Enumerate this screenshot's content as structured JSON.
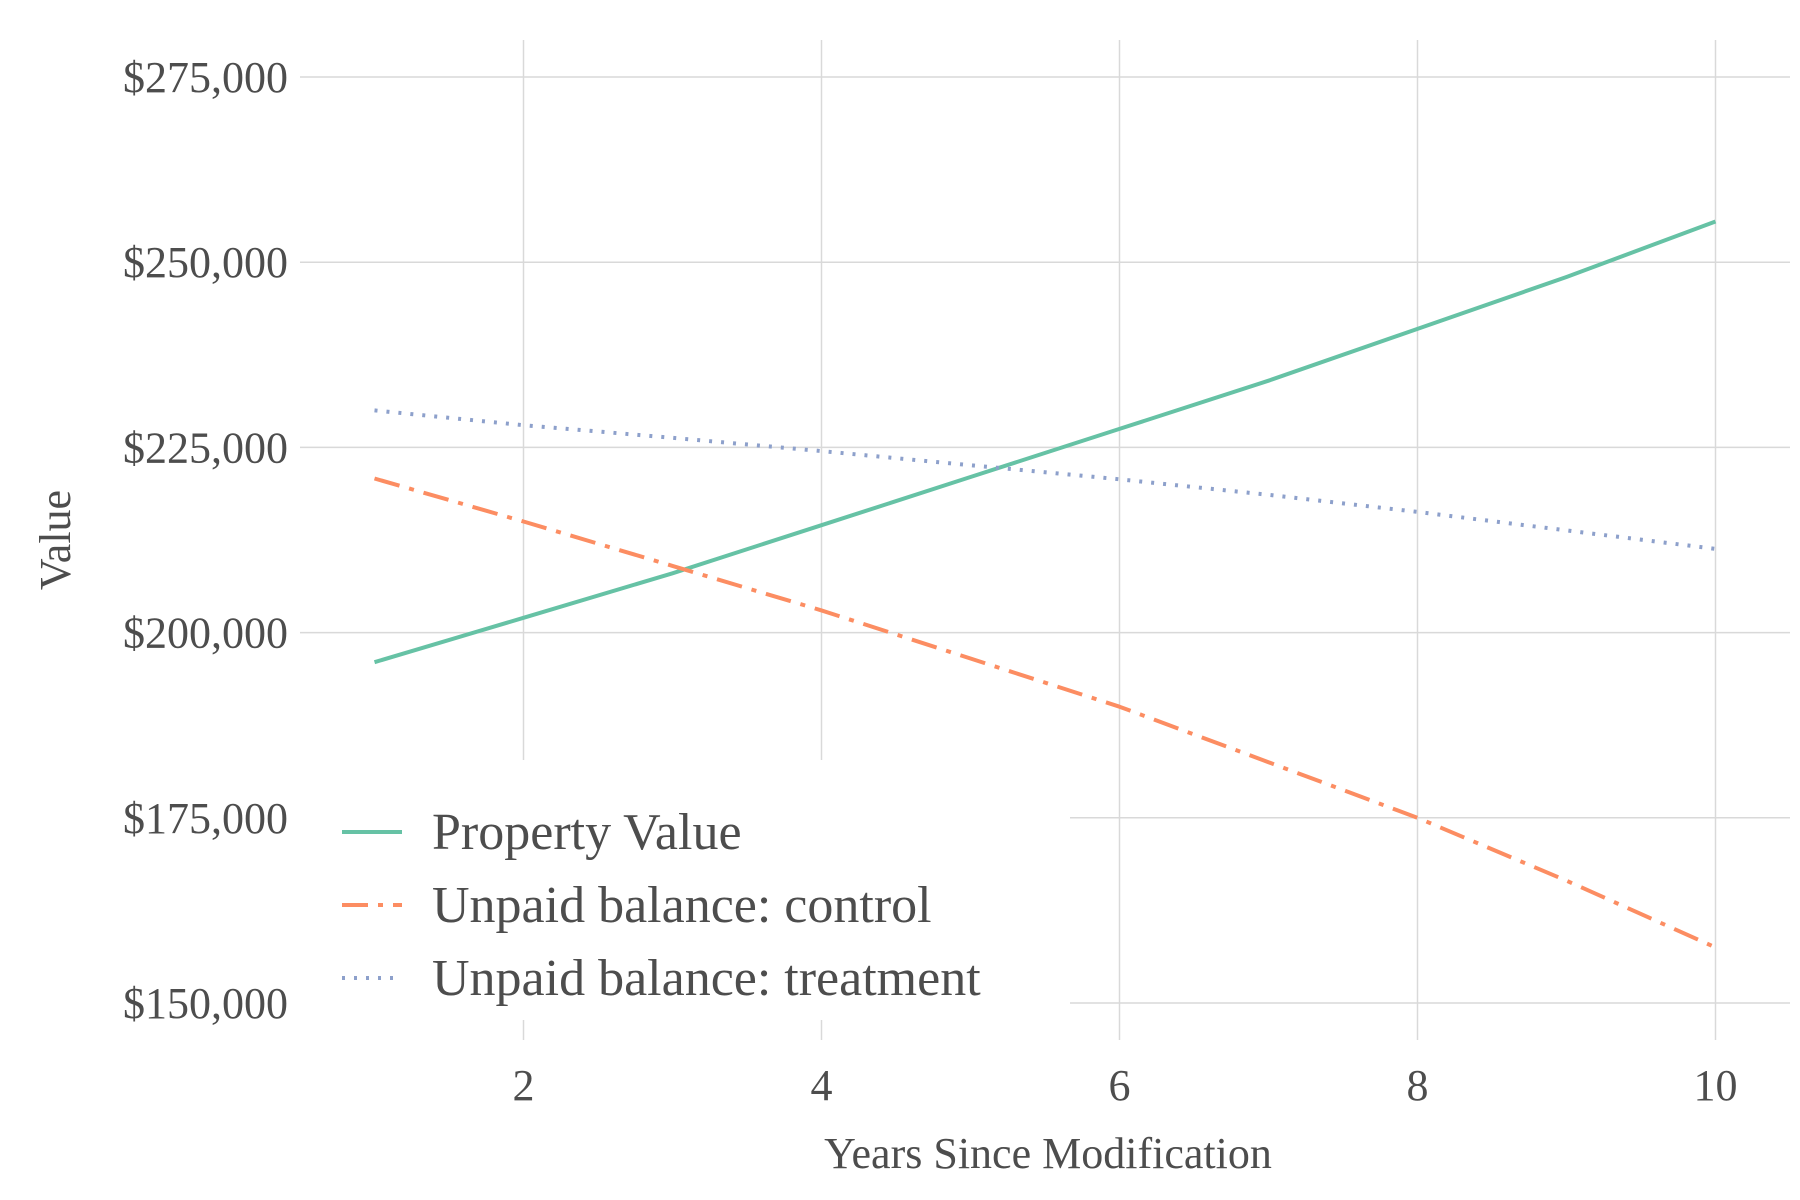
{
  "chart_data": {
    "type": "line",
    "xlabel": "Years Since Modification",
    "ylabel": "Value",
    "xlim": [
      0.5,
      10.5
    ],
    "ylim": [
      145000,
      280000
    ],
    "x_ticks": [
      2,
      4,
      6,
      8,
      10
    ],
    "y_ticks": [
      150000,
      175000,
      200000,
      225000,
      250000,
      275000
    ],
    "x_tick_labels": [
      "2",
      "4",
      "6",
      "8",
      "10"
    ],
    "y_tick_labels": [
      "$150,000",
      "$175,000",
      "$200,000",
      "$225,000",
      "$250,000",
      "$275,000"
    ],
    "x": [
      1,
      2,
      3,
      4,
      5,
      6,
      7,
      8,
      9,
      10
    ],
    "grid": true,
    "legend_position": "bottom-left",
    "series": [
      {
        "name": "Property Value",
        "color": "#66c2a5",
        "dash": "solid",
        "values": [
          196000,
          202000,
          208000,
          214500,
          221000,
          227500,
          234000,
          241000,
          248000,
          255500
        ]
      },
      {
        "name": "Unpaid balance: control",
        "color": "#fc8d62",
        "dash": "dashdot",
        "values": [
          220800,
          215000,
          209000,
          203000,
          196500,
          190000,
          182500,
          175000,
          166500,
          157500
        ]
      },
      {
        "name": "Unpaid balance: treatment",
        "color": "#8da0cb",
        "dash": "dotted",
        "values": [
          230000,
          228000,
          226300,
          224500,
          222600,
          220700,
          218600,
          216300,
          213800,
          211300
        ]
      }
    ]
  }
}
